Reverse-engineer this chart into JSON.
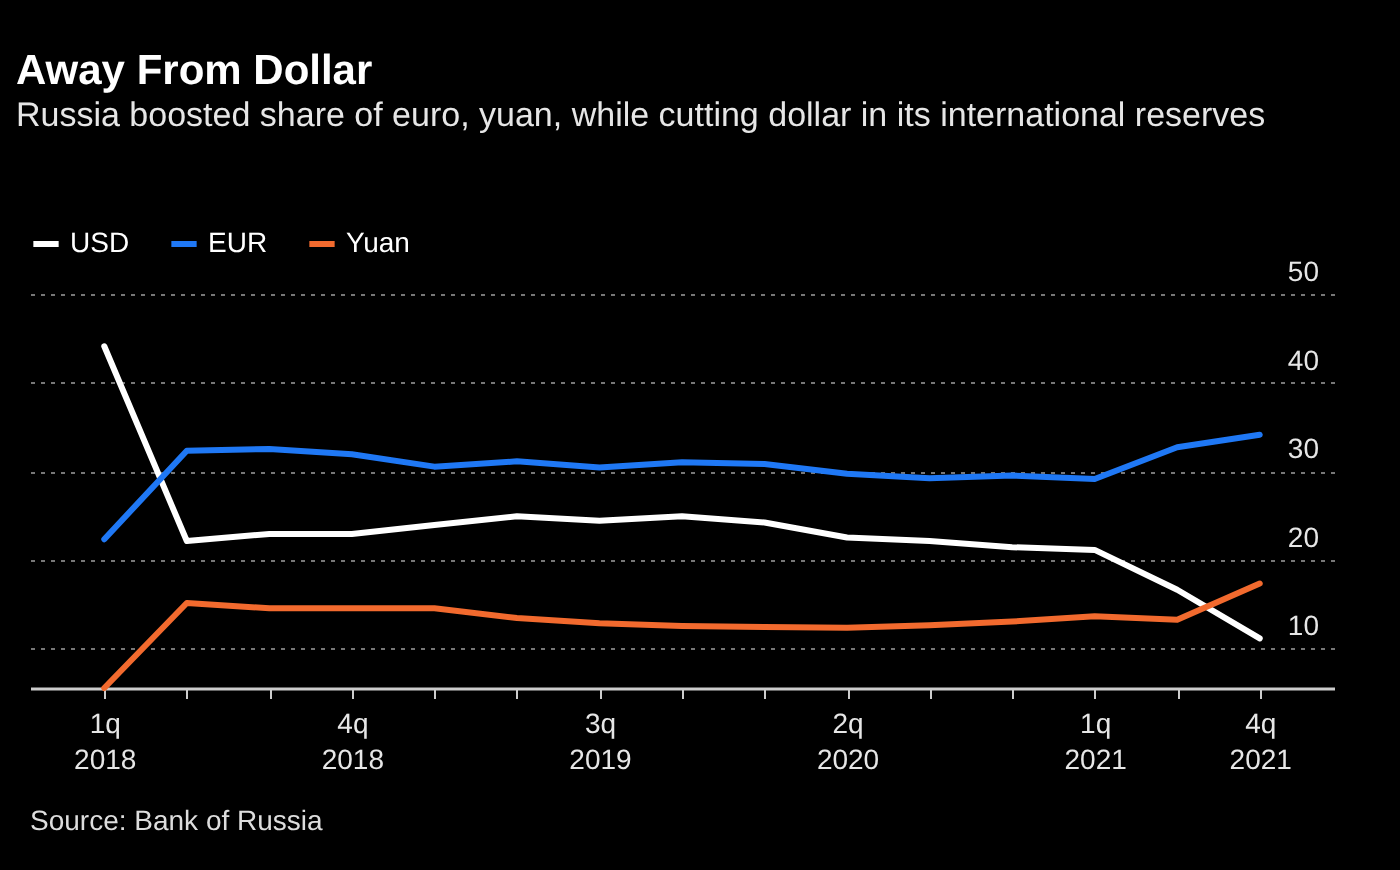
{
  "chart_data": {
    "type": "line",
    "title": "Away From Dollar",
    "subtitle": "Russia boosted share of euro, yuan, while cutting dollar in its international reserves",
    "annotations": [
      "Source: Bank of Russia"
    ],
    "categories": [
      "1q 2018",
      null,
      null,
      "4q 2018",
      null,
      null,
      "3q 2019",
      null,
      null,
      "2q 2020",
      null,
      null,
      "1q 2021",
      null,
      "4q 2021"
    ],
    "series": [
      {
        "name": "USD",
        "color": "#ffffff",
        "values": [
          44.1,
          22.1,
          22.9,
          22.9,
          23.9,
          24.9,
          24.4,
          24.9,
          24.2,
          22.5,
          22.1,
          21.4,
          21.1,
          16.6,
          11.1
        ]
      },
      {
        "name": "EUR",
        "color": "#1f78f5",
        "values": [
          22.3,
          32.3,
          32.5,
          31.9,
          30.5,
          31.1,
          30.4,
          31.0,
          30.8,
          29.7,
          29.2,
          29.5,
          29.1,
          32.7,
          34.1
        ]
      },
      {
        "name": "Yuan",
        "color": "#f26a2e",
        "values": [
          5.5,
          15.1,
          14.5,
          14.5,
          14.5,
          13.4,
          12.8,
          12.5,
          12.4,
          12.3,
          12.6,
          13.0,
          13.6,
          13.2,
          17.3
        ]
      }
    ],
    "ylim": [
      5.5,
      50
    ],
    "yticks": [
      10,
      20,
      30,
      40,
      50
    ],
    "grid": "y",
    "legend": "top left",
    "marker": "none",
    "line_style": "solid"
  }
}
